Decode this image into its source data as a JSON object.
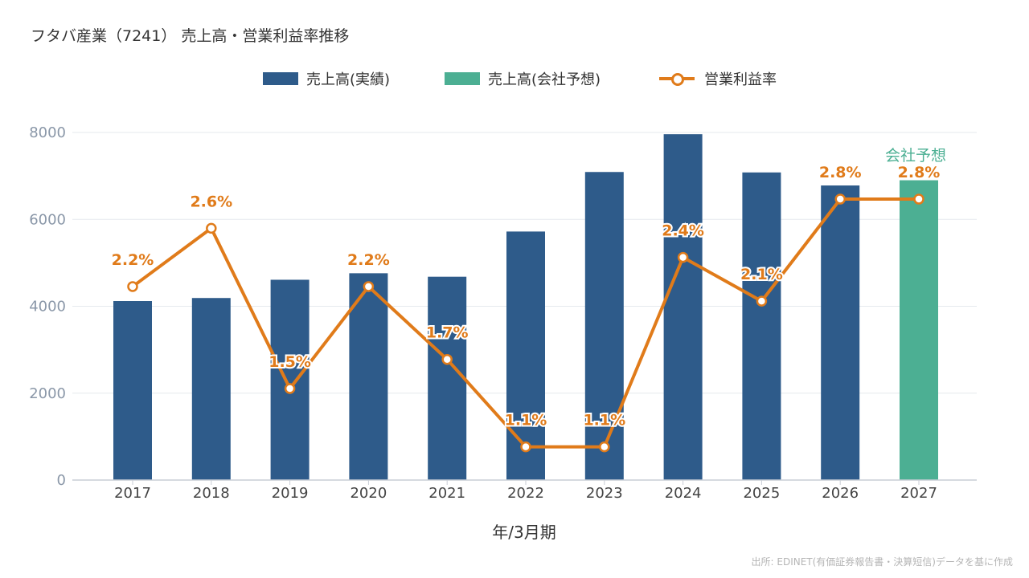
{
  "title": "フタバ産業（7241） 売上高・営業利益率推移",
  "legend": {
    "actual": "売上高(実績)",
    "forecast": "売上高(会社予想)",
    "margin": "営業利益率"
  },
  "source": "出所: EDINET(有価証券報告書・決算短信)データを基に作成",
  "colors": {
    "actual": "#2e5b8a",
    "forecast": "#4caf93",
    "margin": "#e07b1a",
    "grid": "#e6e9ee"
  },
  "chart_data": {
    "type": "bar",
    "title": "フタバ産業（7241） 売上高・営業利益率推移",
    "xlabel": "年/3月期",
    "ylabel": "",
    "ylim": [
      0,
      8000
    ],
    "yticks": [
      0,
      2000,
      4000,
      6000,
      8000
    ],
    "categories": [
      "2017",
      "2018",
      "2019",
      "2020",
      "2021",
      "2022",
      "2023",
      "2024",
      "2025",
      "2026",
      "2027"
    ],
    "series": [
      {
        "name": "売上高(実績)",
        "type": "bar",
        "values": [
          4120,
          4190,
          4610,
          4760,
          4680,
          5720,
          7090,
          7960,
          7080,
          6780,
          null
        ]
      },
      {
        "name": "売上高(会社予想)",
        "type": "bar",
        "values": [
          null,
          null,
          null,
          null,
          null,
          null,
          null,
          null,
          null,
          null,
          6900
        ]
      },
      {
        "name": "営業利益率",
        "type": "line",
        "values": [
          2.2,
          2.6,
          1.5,
          2.2,
          1.7,
          1.1,
          1.1,
          2.4,
          2.1,
          2.8,
          2.8
        ],
        "labels": [
          "2.2%",
          "2.6%",
          "1.5%",
          "2.2%",
          "1.7%",
          "1.1%",
          "1.1%",
          "2.4%",
          "2.1%",
          "2.8%",
          "2.8%"
        ]
      }
    ],
    "annotations": [
      {
        "category": "2027",
        "text": "会社予想"
      }
    ],
    "grid": true,
    "legend_position": "top-center"
  }
}
